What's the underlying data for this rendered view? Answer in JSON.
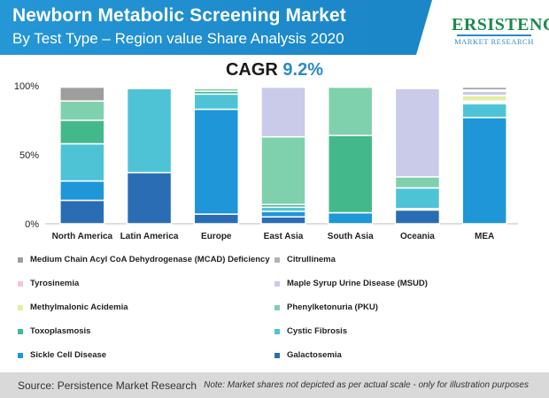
{
  "header": {
    "title": "Newborn Metabolic Screening Market",
    "subtitle": "By Test Type – Region value Share Analysis 2020"
  },
  "logo": {
    "main": "ERSISTENCE",
    "sub": "MARKET RESEARCH"
  },
  "cagr": {
    "label": "CAGR",
    "value": "9.2%"
  },
  "footer": {
    "source": "Source: Persistence Market Research",
    "note": "Note: Market shares not depicted as per actual scale - only for illustration purposes"
  },
  "colors": {
    "header": "#1b86c8",
    "accent": "#2a8ac8",
    "footer_bg": "#d9d9d9"
  },
  "chart_data": {
    "type": "bar",
    "stacked": true,
    "categories": [
      "North America",
      "Latin America",
      "Europe",
      "East Asia",
      "South Asia",
      "Oceania",
      "MEA"
    ],
    "y_ticks": [
      "0%",
      "50%",
      "100%"
    ],
    "ylim": [
      0,
      100
    ],
    "series": [
      {
        "name": "Galactosemia",
        "color": "#2a6db5",
        "values": [
          17,
          37,
          7,
          5,
          0,
          10,
          0
        ]
      },
      {
        "name": "Sickle Cell Disease",
        "color": "#1e96d8",
        "values": [
          14,
          0,
          76,
          4,
          8,
          1,
          77
        ]
      },
      {
        "name": "Cystic Fibrosis",
        "color": "#4fc3d6",
        "values": [
          27,
          61,
          11,
          3,
          0,
          15,
          10
        ]
      },
      {
        "name": "Toxoplasmosis",
        "color": "#43b98b",
        "values": [
          17,
          0,
          2,
          2,
          56,
          0,
          1
        ]
      },
      {
        "name": "Phenylketonuria (PKU)",
        "color": "#7fd1ad",
        "values": [
          14,
          0,
          2,
          49,
          35,
          8,
          1
        ]
      },
      {
        "name": "Methylmalonic Acidemia",
        "color": "#e2eea2",
        "values": [
          0,
          0,
          0,
          0,
          0,
          0,
          4
        ]
      },
      {
        "name": "Maple Syrup Urine Disease (MSUD)",
        "color": "#c9cbe8",
        "values": [
          0,
          0,
          0,
          36,
          0,
          64,
          3
        ]
      },
      {
        "name": "Tyrosinemia",
        "color": "#f2c7d3",
        "values": [
          0,
          0,
          0,
          0,
          0,
          0,
          0
        ]
      },
      {
        "name": "Citrullinema",
        "color": "#b3b3b3",
        "values": [
          0,
          0,
          0,
          0,
          0,
          0,
          1
        ]
      },
      {
        "name": "Medium Chain Acyl CoA Dehydrogenase (MCAD) Deficiency",
        "color": "#9e9e9e",
        "values": [
          10,
          0,
          0,
          0,
          0,
          0,
          2
        ]
      }
    ],
    "legend_order": [
      "Medium Chain Acyl CoA Dehydrogenase (MCAD) Deficiency",
      "Citrullinema",
      "Tyrosinemia",
      "Maple Syrup Urine Disease (MSUD)",
      "Methylmalonic Acidemia",
      "Phenylketonuria (PKU)",
      "Toxoplasmosis",
      "Cystic Fibrosis",
      "Sickle Cell Disease",
      "Galactosemia"
    ],
    "legend_placement": "bottom",
    "grid": false
  }
}
